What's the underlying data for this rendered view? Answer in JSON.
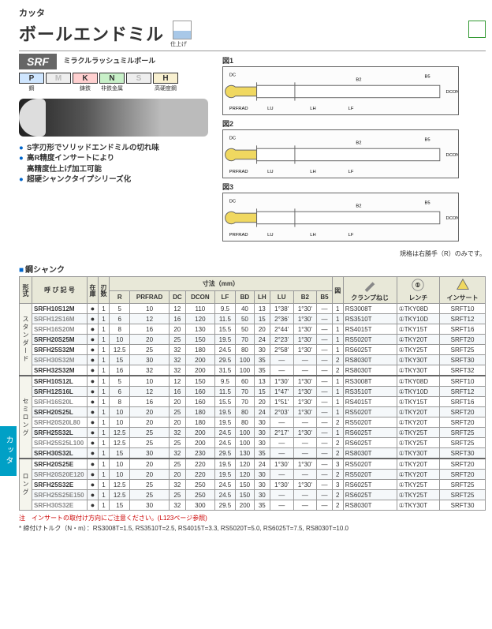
{
  "sidebar_tab": "カッタ",
  "header": {
    "category": "カッタ",
    "title": "ボールエンドミル",
    "finish_label": "仕上げ",
    "series": "SRF",
    "series_sub": "ミラクルラッシュミルボール"
  },
  "materials": [
    {
      "code": "P",
      "label": "鋼",
      "bg": "#cfe6ff"
    },
    {
      "code": "M",
      "label": "",
      "bg": "#eee",
      "fg": "#bbb"
    },
    {
      "code": "K",
      "label": "鋳鉄",
      "bg": "#ffd0d0"
    },
    {
      "code": "N",
      "label": "非鉄金属",
      "bg": "#c8f0c8"
    },
    {
      "code": "S",
      "label": "",
      "bg": "#eee",
      "fg": "#bbb"
    },
    {
      "code": "H",
      "label": "高硬度鋼",
      "bg": "#f8f0d0"
    }
  ],
  "bullets": [
    "S字刃形でソリッドエンドミルの切れ味",
    "高R精度インサートにより\n高精度仕上げ加工可能",
    "超硬シャンクタイプシリーズ化"
  ],
  "diagrams": [
    "図1",
    "図2",
    "図3"
  ],
  "dia_dims": [
    "DC",
    "PRFRAD",
    "LU",
    "LH",
    "LF",
    "B2",
    "B5",
    "DCON"
  ],
  "right_note": "規格は右勝手（R）のみです。",
  "section_title": "鋼シャンク",
  "table": {
    "head": {
      "form": "形式",
      "designation": "呼 び 記 号",
      "stock": "在庫",
      "edges": "刃数",
      "dims": "寸法（mm）",
      "fig": "図",
      "clamp": "クランプねじ",
      "wrench": "レンチ",
      "insert": "インサート",
      "cols": [
        "R",
        "PRFRAD",
        "DC",
        "DCON",
        "LF",
        "BD",
        "LH",
        "LU",
        "B2",
        "B5"
      ]
    },
    "groups": [
      {
        "name": "スタンダード",
        "rows": [
          {
            "cls": "",
            "code": "SRFH10S12M",
            "s": "●",
            "n": "1",
            "v": [
              "5",
              "10",
              "12",
              "110",
              "9.5",
              "40",
              "13",
              "1°38'",
              "1°30'"
            ],
            "f": "1",
            "c": "RS3008T",
            "w": "①TKY08D",
            "i": "SRFT10"
          },
          {
            "cls": "a",
            "code": "SRFH12S16M",
            "s": "●",
            "n": "1",
            "v": [
              "6",
              "12",
              "16",
              "120",
              "11.5",
              "50",
              "15",
              "2°36'",
              "1°30'"
            ],
            "f": "1",
            "c": "RS3510T",
            "w": "①TKY10D",
            "i": "SRFT12"
          },
          {
            "cls": "a",
            "code": "SRFH16S20M",
            "s": "●",
            "n": "1",
            "v": [
              "8",
              "16",
              "20",
              "130",
              "15.5",
              "50",
              "20",
              "2°44'",
              "1°30'"
            ],
            "f": "1",
            "c": "RS4015T",
            "w": "①TKY15T",
            "i": "SRFT16"
          },
          {
            "cls": "",
            "code": "SRFH20S25M",
            "s": "●",
            "n": "1",
            "v": [
              "10",
              "20",
              "25",
              "150",
              "19.5",
              "70",
              "24",
              "2°23'",
              "1°30'"
            ],
            "f": "1",
            "c": "RS5020T",
            "w": "①TKY20T",
            "i": "SRFT20"
          },
          {
            "cls": "",
            "code": "SRFH25S32M",
            "s": "●",
            "n": "1",
            "v": [
              "12.5",
              "25",
              "32",
              "180",
              "24.5",
              "80",
              "30",
              "2°58'",
              "1°30'"
            ],
            "f": "1",
            "c": "RS6025T",
            "w": "①TKY25T",
            "i": "SRFT25"
          },
          {
            "cls": "a",
            "code": "SRFH30S32M",
            "s": "●",
            "n": "1",
            "v": [
              "15",
              "30",
              "32",
              "200",
              "29.5",
              "100",
              "35",
              "—",
              "—"
            ],
            "f": "2",
            "c": "RS8030T",
            "w": "①TKY30T",
            "i": "SRFT30"
          },
          {
            "cls": "",
            "code": "SRFH32S32M",
            "s": "●",
            "n": "1",
            "v": [
              "16",
              "32",
              "32",
              "200",
              "31.5",
              "100",
              "35",
              "—",
              "—"
            ],
            "f": "2",
            "c": "RS8030T",
            "w": "①TKY30T",
            "i": "SRFT32"
          }
        ]
      },
      {
        "name": "セミロング",
        "rows": [
          {
            "cls": "",
            "code": "SRFH10S12L",
            "s": "●",
            "n": "1",
            "v": [
              "5",
              "10",
              "12",
              "150",
              "9.5",
              "60",
              "13",
              "1°30'",
              "1°30'"
            ],
            "f": "1",
            "c": "RS3008T",
            "w": "①TKY08D",
            "i": "SRFT10"
          },
          {
            "cls": "",
            "code": "SRFH12S16L",
            "s": "●",
            "n": "1",
            "v": [
              "6",
              "12",
              "16",
              "160",
              "11.5",
              "70",
              "15",
              "1°47'",
              "1°30'"
            ],
            "f": "1",
            "c": "RS3510T",
            "w": "①TKY10D",
            "i": "SRFT12"
          },
          {
            "cls": "a",
            "code": "SRFH16S20L",
            "s": "●",
            "n": "1",
            "v": [
              "8",
              "16",
              "20",
              "160",
              "15.5",
              "70",
              "20",
              "1°51'",
              "1°30'"
            ],
            "f": "1",
            "c": "RS4015T",
            "w": "①TKY15T",
            "i": "SRFT16"
          },
          {
            "cls": "",
            "code": "SRFH20S25L",
            "s": "●",
            "n": "1",
            "v": [
              "10",
              "20",
              "25",
              "180",
              "19.5",
              "80",
              "24",
              "2°03'",
              "1°30'"
            ],
            "f": "1",
            "c": "RS5020T",
            "w": "①TKY20T",
            "i": "SRFT20"
          },
          {
            "cls": "a",
            "code": "SRFH20S20L80",
            "s": "●",
            "n": "1",
            "v": [
              "10",
              "20",
              "20",
              "180",
              "19.5",
              "80",
              "30",
              "—",
              "—"
            ],
            "f": "2",
            "c": "RS5020T",
            "w": "①TKY20T",
            "i": "SRFT20"
          },
          {
            "cls": "",
            "code": "SRFH25S32L",
            "s": "●",
            "n": "1",
            "v": [
              "12.5",
              "25",
              "32",
              "200",
              "24.5",
              "100",
              "30",
              "2°17'",
              "1°30'"
            ],
            "f": "1",
            "c": "RS6025T",
            "w": "①TKY25T",
            "i": "SRFT25"
          },
          {
            "cls": "a",
            "code": "SRFH25S25L100",
            "s": "●",
            "n": "1",
            "v": [
              "12.5",
              "25",
              "25",
              "200",
              "24.5",
              "100",
              "30",
              "—",
              "—"
            ],
            "f": "2",
            "c": "RS6025T",
            "w": "①TKY25T",
            "i": "SRFT25"
          },
          {
            "cls": "",
            "code": "SRFH30S32L",
            "s": "●",
            "n": "1",
            "v": [
              "15",
              "30",
              "32",
              "230",
              "29.5",
              "130",
              "35",
              "—",
              "—"
            ],
            "f": "2",
            "c": "RS8030T",
            "w": "①TKY30T",
            "i": "SRFT30"
          }
        ]
      },
      {
        "name": "ロング",
        "rows": [
          {
            "cls": "",
            "code": "SRFH20S25E",
            "s": "●",
            "n": "1",
            "v": [
              "10",
              "20",
              "25",
              "220",
              "19.5",
              "120",
              "24",
              "1°30'",
              "1°30'"
            ],
            "f": "3",
            "c": "RS5020T",
            "w": "①TKY20T",
            "i": "SRFT20"
          },
          {
            "cls": "a",
            "code": "SRFH20S20E120",
            "s": "●",
            "n": "1",
            "v": [
              "10",
              "20",
              "20",
              "220",
              "19.5",
              "120",
              "30",
              "—",
              "—"
            ],
            "f": "2",
            "c": "RS5020T",
            "w": "①TKY20T",
            "i": "SRFT20"
          },
          {
            "cls": "",
            "code": "SRFH25S32E",
            "s": "●",
            "n": "1",
            "v": [
              "12.5",
              "25",
              "32",
              "250",
              "24.5",
              "150",
              "30",
              "1°30'",
              "1°30'"
            ],
            "f": "3",
            "c": "RS6025T",
            "w": "①TKY25T",
            "i": "SRFT25"
          },
          {
            "cls": "a",
            "code": "SRFH25S25E150",
            "s": "●",
            "n": "1",
            "v": [
              "12.5",
              "25",
              "25",
              "250",
              "24.5",
              "150",
              "30",
              "—",
              "—"
            ],
            "f": "2",
            "c": "RS6025T",
            "w": "①TKY25T",
            "i": "SRFT25"
          },
          {
            "cls": "a",
            "code": "SRFH30S32E",
            "s": "●",
            "n": "1",
            "v": [
              "15",
              "30",
              "32",
              "300",
              "29.5",
              "200",
              "35",
              "—",
              "—"
            ],
            "f": "2",
            "c": "RS8030T",
            "w": "①TKY30T",
            "i": "SRFT30"
          }
        ]
      }
    ]
  },
  "footnote1": "注　インサートの取付け方向にご注意ください。(L123ページ参照)",
  "footnote2": "* 締付けトルク（N・m）：RS3008T=1.5, RS3510T=2.5, RS4015T=3.3, RS5020T=5.0, RS6025T=7.5, RS8030T=10.0"
}
